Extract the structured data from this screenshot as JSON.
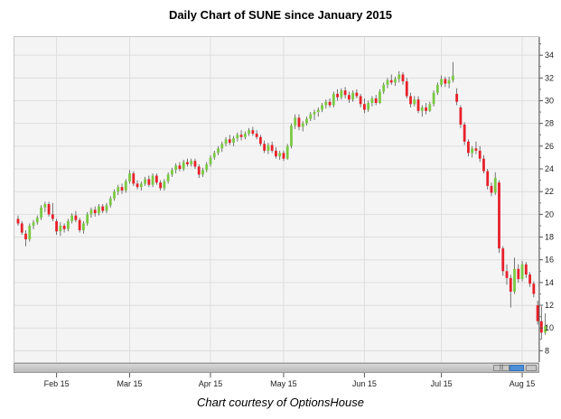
{
  "chart_data": {
    "type": "candlestick",
    "title": "Daily Chart of SUNE since January 2015",
    "caption": "Chart courtesy of OptionsHouse",
    "ylim": [
      7,
      35.6
    ],
    "yticks": [
      8,
      10,
      12,
      14,
      16,
      18,
      20,
      22,
      24,
      26,
      28,
      30,
      32,
      34
    ],
    "xlabels": [
      "Feb 15",
      "Mar 15",
      "Apr 15",
      "May 15",
      "Jun 15",
      "Jul 15",
      "Aug 15"
    ],
    "xlabel_index": [
      10,
      29,
      50,
      69,
      90,
      110,
      131
    ],
    "up_color": "#7ac943",
    "down_color": "#e8202a",
    "candles": [
      {
        "o": 19.6,
        "h": 19.9,
        "l": 19.0,
        "c": 19.2
      },
      {
        "o": 19.2,
        "h": 19.4,
        "l": 18.2,
        "c": 18.4
      },
      {
        "o": 18.3,
        "h": 18.6,
        "l": 17.2,
        "c": 17.8
      },
      {
        "o": 17.8,
        "h": 19.2,
        "l": 17.6,
        "c": 19.0
      },
      {
        "o": 19.0,
        "h": 19.5,
        "l": 18.7,
        "c": 19.3
      },
      {
        "o": 19.3,
        "h": 19.9,
        "l": 19.1,
        "c": 19.7
      },
      {
        "o": 19.7,
        "h": 20.8,
        "l": 19.5,
        "c": 20.6
      },
      {
        "o": 20.6,
        "h": 21.1,
        "l": 20.2,
        "c": 20.9
      },
      {
        "o": 20.9,
        "h": 21.1,
        "l": 19.8,
        "c": 20.0
      },
      {
        "o": 20.0,
        "h": 21.0,
        "l": 19.4,
        "c": 19.6
      },
      {
        "o": 19.4,
        "h": 19.6,
        "l": 18.2,
        "c": 18.5
      },
      {
        "o": 18.5,
        "h": 19.3,
        "l": 18.1,
        "c": 19.0
      },
      {
        "o": 19.0,
        "h": 19.2,
        "l": 18.4,
        "c": 18.7
      },
      {
        "o": 18.7,
        "h": 19.6,
        "l": 18.5,
        "c": 19.4
      },
      {
        "o": 19.4,
        "h": 20.1,
        "l": 19.2,
        "c": 19.9
      },
      {
        "o": 19.9,
        "h": 20.3,
        "l": 19.3,
        "c": 19.5
      },
      {
        "o": 19.5,
        "h": 19.7,
        "l": 18.4,
        "c": 18.6
      },
      {
        "o": 18.6,
        "h": 19.4,
        "l": 18.3,
        "c": 19.2
      },
      {
        "o": 19.2,
        "h": 20.2,
        "l": 19.0,
        "c": 20.0
      },
      {
        "o": 20.0,
        "h": 20.6,
        "l": 19.7,
        "c": 20.4
      },
      {
        "o": 20.4,
        "h": 20.7,
        "l": 19.8,
        "c": 20.1
      },
      {
        "o": 20.1,
        "h": 20.9,
        "l": 19.9,
        "c": 20.7
      },
      {
        "o": 20.7,
        "h": 20.9,
        "l": 20.1,
        "c": 20.3
      },
      {
        "o": 20.3,
        "h": 21.0,
        "l": 20.1,
        "c": 20.8
      },
      {
        "o": 20.8,
        "h": 21.6,
        "l": 20.6,
        "c": 21.4
      },
      {
        "o": 21.4,
        "h": 22.2,
        "l": 21.2,
        "c": 22.0
      },
      {
        "o": 22.0,
        "h": 22.6,
        "l": 21.7,
        "c": 22.4
      },
      {
        "o": 22.4,
        "h": 22.7,
        "l": 21.8,
        "c": 22.1
      },
      {
        "o": 22.1,
        "h": 23.1,
        "l": 21.9,
        "c": 22.9
      },
      {
        "o": 22.9,
        "h": 23.9,
        "l": 22.7,
        "c": 23.6
      },
      {
        "o": 23.6,
        "h": 23.8,
        "l": 22.5,
        "c": 22.7
      },
      {
        "o": 22.7,
        "h": 23.0,
        "l": 22.2,
        "c": 22.4
      },
      {
        "o": 22.4,
        "h": 22.9,
        "l": 22.1,
        "c": 22.7
      },
      {
        "o": 22.7,
        "h": 23.3,
        "l": 22.5,
        "c": 23.1
      },
      {
        "o": 23.1,
        "h": 23.4,
        "l": 22.4,
        "c": 22.6
      },
      {
        "o": 22.6,
        "h": 23.6,
        "l": 22.4,
        "c": 23.4
      },
      {
        "o": 23.4,
        "h": 23.6,
        "l": 22.6,
        "c": 22.8
      },
      {
        "o": 22.8,
        "h": 23.0,
        "l": 22.1,
        "c": 22.3
      },
      {
        "o": 22.3,
        "h": 23.1,
        "l": 22.1,
        "c": 22.9
      },
      {
        "o": 22.9,
        "h": 23.7,
        "l": 22.7,
        "c": 23.5
      },
      {
        "o": 23.5,
        "h": 24.1,
        "l": 23.3,
        "c": 23.9
      },
      {
        "o": 23.9,
        "h": 24.5,
        "l": 23.6,
        "c": 24.3
      },
      {
        "o": 24.3,
        "h": 24.6,
        "l": 23.8,
        "c": 24.0
      },
      {
        "o": 24.0,
        "h": 24.8,
        "l": 23.8,
        "c": 24.6
      },
      {
        "o": 24.6,
        "h": 24.9,
        "l": 24.2,
        "c": 24.4
      },
      {
        "o": 24.4,
        "h": 24.9,
        "l": 24.2,
        "c": 24.7
      },
      {
        "o": 24.7,
        "h": 24.9,
        "l": 24.0,
        "c": 24.2
      },
      {
        "o": 24.2,
        "h": 24.4,
        "l": 23.2,
        "c": 23.5
      },
      {
        "o": 23.5,
        "h": 24.1,
        "l": 23.3,
        "c": 23.9
      },
      {
        "o": 23.9,
        "h": 24.6,
        "l": 23.7,
        "c": 24.4
      },
      {
        "o": 24.4,
        "h": 25.2,
        "l": 24.2,
        "c": 25.0
      },
      {
        "o": 25.0,
        "h": 25.6,
        "l": 24.8,
        "c": 25.4
      },
      {
        "o": 25.4,
        "h": 26.0,
        "l": 25.2,
        "c": 25.8
      },
      {
        "o": 25.8,
        "h": 26.4,
        "l": 25.5,
        "c": 26.2
      },
      {
        "o": 26.2,
        "h": 26.8,
        "l": 26.0,
        "c": 26.6
      },
      {
        "o": 26.6,
        "h": 27.0,
        "l": 26.1,
        "c": 26.3
      },
      {
        "o": 26.3,
        "h": 26.9,
        "l": 26.0,
        "c": 26.7
      },
      {
        "o": 26.7,
        "h": 27.2,
        "l": 26.4,
        "c": 27.0
      },
      {
        "o": 27.0,
        "h": 27.4,
        "l": 26.5,
        "c": 26.8
      },
      {
        "o": 26.8,
        "h": 27.3,
        "l": 26.6,
        "c": 27.1
      },
      {
        "o": 27.1,
        "h": 27.6,
        "l": 26.9,
        "c": 27.4
      },
      {
        "o": 27.4,
        "h": 27.7,
        "l": 26.9,
        "c": 27.1
      },
      {
        "o": 27.1,
        "h": 27.4,
        "l": 26.6,
        "c": 26.8
      },
      {
        "o": 26.8,
        "h": 27.0,
        "l": 26.0,
        "c": 26.2
      },
      {
        "o": 26.2,
        "h": 26.5,
        "l": 25.4,
        "c": 25.6
      },
      {
        "o": 25.6,
        "h": 26.3,
        "l": 25.3,
        "c": 26.1
      },
      {
        "o": 26.1,
        "h": 26.4,
        "l": 25.4,
        "c": 25.6
      },
      {
        "o": 25.6,
        "h": 25.9,
        "l": 24.9,
        "c": 25.1
      },
      {
        "o": 25.1,
        "h": 25.6,
        "l": 24.8,
        "c": 25.4
      },
      {
        "o": 25.4,
        "h": 25.6,
        "l": 24.7,
        "c": 24.9
      },
      {
        "o": 24.9,
        "h": 26.2,
        "l": 24.8,
        "c": 26.0
      },
      {
        "o": 26.0,
        "h": 28.0,
        "l": 25.8,
        "c": 27.8
      },
      {
        "o": 27.8,
        "h": 28.8,
        "l": 27.5,
        "c": 28.5
      },
      {
        "o": 28.5,
        "h": 28.8,
        "l": 27.4,
        "c": 27.7
      },
      {
        "o": 27.7,
        "h": 28.2,
        "l": 27.3,
        "c": 28.0
      },
      {
        "o": 28.0,
        "h": 28.6,
        "l": 27.8,
        "c": 28.4
      },
      {
        "o": 28.4,
        "h": 29.0,
        "l": 28.2,
        "c": 28.8
      },
      {
        "o": 28.8,
        "h": 29.2,
        "l": 28.3,
        "c": 29.0
      },
      {
        "o": 29.0,
        "h": 29.4,
        "l": 28.6,
        "c": 29.2
      },
      {
        "o": 29.2,
        "h": 29.8,
        "l": 29.0,
        "c": 29.6
      },
      {
        "o": 29.6,
        "h": 30.1,
        "l": 29.3,
        "c": 29.9
      },
      {
        "o": 29.9,
        "h": 30.2,
        "l": 29.4,
        "c": 29.6
      },
      {
        "o": 29.6,
        "h": 30.8,
        "l": 29.4,
        "c": 30.6
      },
      {
        "o": 30.6,
        "h": 31.0,
        "l": 30.0,
        "c": 30.3
      },
      {
        "o": 30.3,
        "h": 31.1,
        "l": 30.1,
        "c": 30.9
      },
      {
        "o": 30.9,
        "h": 31.2,
        "l": 30.2,
        "c": 30.5
      },
      {
        "o": 30.5,
        "h": 30.8,
        "l": 29.8,
        "c": 30.1
      },
      {
        "o": 30.1,
        "h": 30.9,
        "l": 29.9,
        "c": 30.7
      },
      {
        "o": 30.7,
        "h": 31.0,
        "l": 30.2,
        "c": 30.4
      },
      {
        "o": 30.4,
        "h": 30.6,
        "l": 29.4,
        "c": 29.7
      },
      {
        "o": 29.7,
        "h": 30.2,
        "l": 28.9,
        "c": 29.2
      },
      {
        "o": 29.2,
        "h": 30.0,
        "l": 29.0,
        "c": 29.8
      },
      {
        "o": 29.8,
        "h": 30.4,
        "l": 29.5,
        "c": 30.2
      },
      {
        "o": 30.2,
        "h": 30.5,
        "l": 29.6,
        "c": 29.8
      },
      {
        "o": 29.8,
        "h": 31.0,
        "l": 29.7,
        "c": 30.8
      },
      {
        "o": 30.8,
        "h": 31.6,
        "l": 30.6,
        "c": 31.4
      },
      {
        "o": 31.4,
        "h": 32.0,
        "l": 31.1,
        "c": 31.8
      },
      {
        "o": 31.8,
        "h": 32.3,
        "l": 31.4,
        "c": 31.6
      },
      {
        "o": 31.6,
        "h": 32.1,
        "l": 31.3,
        "c": 31.9
      },
      {
        "o": 31.9,
        "h": 32.6,
        "l": 31.6,
        "c": 32.3
      },
      {
        "o": 32.3,
        "h": 32.5,
        "l": 31.4,
        "c": 31.7
      },
      {
        "o": 31.7,
        "h": 32.0,
        "l": 30.2,
        "c": 30.4
      },
      {
        "o": 30.4,
        "h": 30.7,
        "l": 29.4,
        "c": 29.7
      },
      {
        "o": 29.7,
        "h": 30.4,
        "l": 29.5,
        "c": 30.1
      },
      {
        "o": 30.1,
        "h": 30.4,
        "l": 28.9,
        "c": 29.1
      },
      {
        "o": 29.1,
        "h": 29.6,
        "l": 28.6,
        "c": 29.4
      },
      {
        "o": 29.4,
        "h": 29.8,
        "l": 28.8,
        "c": 29.1
      },
      {
        "o": 29.1,
        "h": 29.9,
        "l": 29.0,
        "c": 29.7
      },
      {
        "o": 29.7,
        "h": 30.9,
        "l": 29.5,
        "c": 30.7
      },
      {
        "o": 30.7,
        "h": 31.6,
        "l": 30.5,
        "c": 31.4
      },
      {
        "o": 31.4,
        "h": 32.2,
        "l": 31.2,
        "c": 31.9
      },
      {
        "o": 31.9,
        "h": 32.1,
        "l": 31.2,
        "c": 31.5
      },
      {
        "o": 31.5,
        "h": 32.1,
        "l": 31.1,
        "c": 31.8
      },
      {
        "o": 31.8,
        "h": 33.4,
        "l": 31.6,
        "c": 32.2
      },
      {
        "o": 30.6,
        "h": 31.1,
        "l": 29.6,
        "c": 29.9
      },
      {
        "o": 29.4,
        "h": 29.6,
        "l": 27.6,
        "c": 27.9
      },
      {
        "o": 27.9,
        "h": 28.1,
        "l": 26.1,
        "c": 26.4
      },
      {
        "o": 26.4,
        "h": 26.6,
        "l": 25.1,
        "c": 25.4
      },
      {
        "o": 25.4,
        "h": 26.0,
        "l": 25.0,
        "c": 25.8
      },
      {
        "o": 25.8,
        "h": 26.4,
        "l": 25.3,
        "c": 25.6
      },
      {
        "o": 25.6,
        "h": 26.0,
        "l": 24.6,
        "c": 24.9
      },
      {
        "o": 24.9,
        "h": 25.2,
        "l": 23.6,
        "c": 23.8
      },
      {
        "o": 23.8,
        "h": 24.0,
        "l": 22.2,
        "c": 22.5
      },
      {
        "o": 22.5,
        "h": 22.8,
        "l": 21.6,
        "c": 21.9
      },
      {
        "o": 21.9,
        "h": 23.7,
        "l": 21.7,
        "c": 23.2
      },
      {
        "o": 22.8,
        "h": 23.0,
        "l": 16.6,
        "c": 17.0
      },
      {
        "o": 17.0,
        "h": 17.2,
        "l": 14.6,
        "c": 15.0
      },
      {
        "o": 15.0,
        "h": 15.6,
        "l": 13.8,
        "c": 14.4
      },
      {
        "o": 14.4,
        "h": 14.7,
        "l": 11.8,
        "c": 13.2
      },
      {
        "o": 13.2,
        "h": 16.2,
        "l": 13.0,
        "c": 15.2
      },
      {
        "o": 15.2,
        "h": 15.6,
        "l": 14.0,
        "c": 14.3
      },
      {
        "o": 14.3,
        "h": 15.9,
        "l": 14.1,
        "c": 15.6
      },
      {
        "o": 15.6,
        "h": 15.8,
        "l": 14.4,
        "c": 14.7
      },
      {
        "o": 14.7,
        "h": 14.9,
        "l": 13.6,
        "c": 13.9
      },
      {
        "o": 13.9,
        "h": 14.1,
        "l": 12.7,
        "c": 13.0
      },
      {
        "o": 12.0,
        "h": 12.4,
        "l": 10.3,
        "c": 10.6
      },
      {
        "o": 10.6,
        "h": 11.9,
        "l": 9.0,
        "c": 9.6
      },
      {
        "o": 9.6,
        "h": 11.3,
        "l": 9.4,
        "c": 10.2
      }
    ]
  }
}
